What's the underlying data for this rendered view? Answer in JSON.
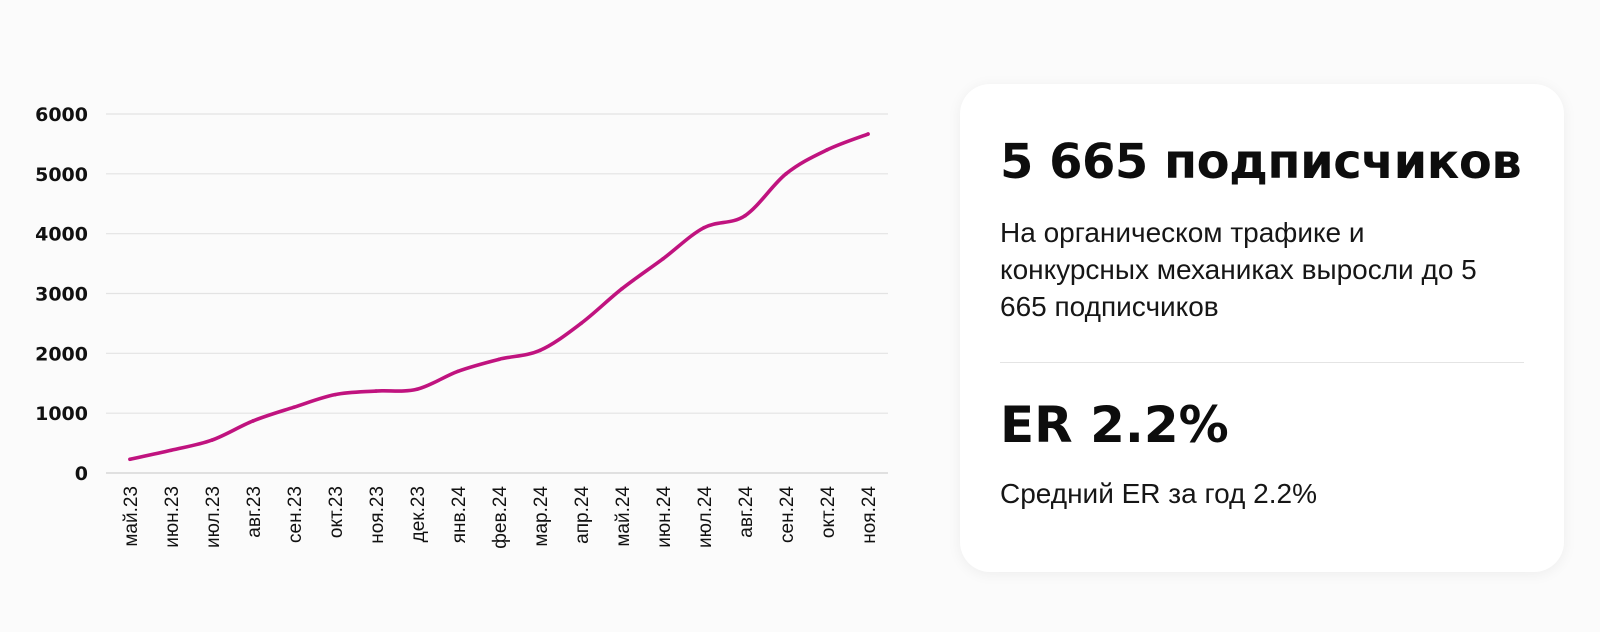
{
  "chart_data": {
    "type": "line",
    "title": "",
    "xlabel": "",
    "ylabel": "",
    "ylim": [
      0,
      6000
    ],
    "y_ticks": [
      0,
      1000,
      2000,
      3000,
      4000,
      5000,
      6000
    ],
    "grid": true,
    "legend": "none",
    "line_color": "#c0137f",
    "categories": [
      "май.23",
      "июн.23",
      "июл.23",
      "авг.23",
      "сен.23",
      "окт.23",
      "ноя.23",
      "дек.23",
      "янв.24",
      "фев.24",
      "мар.24",
      "апр.24",
      "май.24",
      "июн.24",
      "июл.24",
      "авг.24",
      "сен.24",
      "окт.24",
      "ноя.24"
    ],
    "series": [
      {
        "values": [
          230,
          380,
          550,
          870,
          1100,
          1310,
          1370,
          1400,
          1700,
          1900,
          2050,
          2500,
          3080,
          3580,
          4100,
          4300,
          5000,
          5400,
          5665
        ]
      }
    ]
  },
  "card": {
    "title": "5 665 подписчиков",
    "description": "На органическом трафике и конкурсных механиках выросли до 5 665 подписчиков",
    "metric": "ER 2.2%",
    "metric_description": "Средний ER за год 2.2%"
  }
}
